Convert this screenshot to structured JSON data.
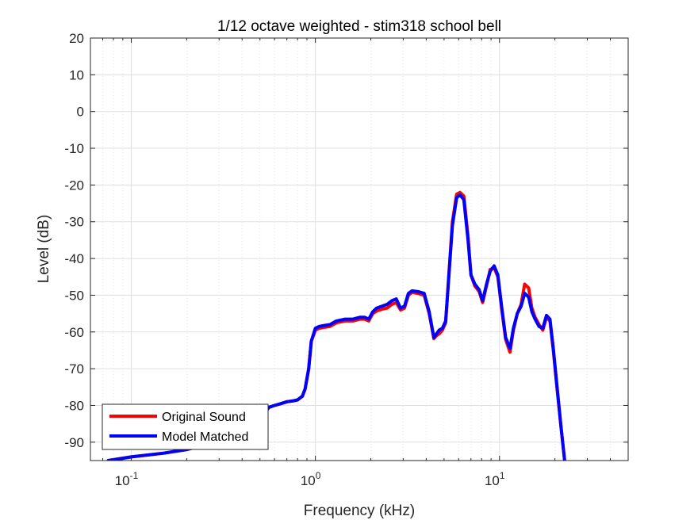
{
  "chart_data": {
    "type": "line",
    "title": "1/12 octave weighted - stim318 school bell",
    "xlabel": "Frequency (kHz)",
    "ylabel": "Level (dB)",
    "xscale": "log",
    "xlim": [
      0.06,
      50
    ],
    "ylim": [
      -95,
      20
    ],
    "grid": true,
    "legend_position": "bottom-left",
    "yticks": [
      20,
      10,
      0,
      -10,
      -20,
      -30,
      -40,
      -50,
      -60,
      -70,
      -80,
      -90
    ],
    "xticks": [
      {
        "value": 0.1,
        "base": "10",
        "exp": "-1"
      },
      {
        "value": 1,
        "base": "10",
        "exp": "0"
      },
      {
        "value": 10,
        "base": "10",
        "exp": "1"
      }
    ],
    "series": [
      {
        "name": "Original Sound",
        "color": "#ff0000",
        "x": [
          0.075,
          0.1,
          0.15,
          0.2,
          0.3,
          0.4,
          0.47,
          0.5,
          0.53,
          0.56,
          0.6,
          0.65,
          0.7,
          0.75,
          0.8,
          0.85,
          0.88,
          0.92,
          0.95,
          1.0,
          1.05,
          1.1,
          1.2,
          1.3,
          1.45,
          1.6,
          1.75,
          1.85,
          1.95,
          2.05,
          2.15,
          2.3,
          2.45,
          2.6,
          2.75,
          2.9,
          3.05,
          3.2,
          3.35,
          3.6,
          3.9,
          4.15,
          4.4,
          4.55,
          4.7,
          4.9,
          5.1,
          5.3,
          5.55,
          5.85,
          6.1,
          6.4,
          6.75,
          7.0,
          7.35,
          7.75,
          8.1,
          8.5,
          8.9,
          9.35,
          9.8,
          10.3,
          10.8,
          11.4,
          11.9,
          12.5,
          13.1,
          13.7,
          14.4,
          15.0,
          15.6,
          16.4,
          17.2,
          18.0,
          18.8,
          19.6,
          20.6,
          21.6,
          22.6,
          23.2
        ],
        "y": [
          -95,
          -94,
          -93,
          -92,
          -90,
          -88.5,
          -87,
          -84,
          -82,
          -80.5,
          -80,
          -79.5,
          -79,
          -78.8,
          -78.5,
          -77.5,
          -75.5,
          -70,
          -62.5,
          -59.5,
          -59,
          -58.8,
          -58.5,
          -57.5,
          -57,
          -57,
          -56.5,
          -56.5,
          -57,
          -55,
          -54.3,
          -53.8,
          -53.5,
          -52.5,
          -52,
          -54,
          -53.5,
          -50,
          -49.2,
          -49.5,
          -50,
          -55,
          -61.8,
          -61,
          -60.5,
          -59.5,
          -57.5,
          -45,
          -30,
          -22.5,
          -22,
          -23,
          -34,
          -44.5,
          -47.5,
          -49,
          -52,
          -47.5,
          -43,
          -42.5,
          -45,
          -54,
          -62,
          -65.5,
          -59.5,
          -55,
          -52.5,
          -47,
          -48,
          -53.5,
          -56,
          -58,
          -59.5,
          -56,
          -57,
          -65,
          -76,
          -86,
          -95,
          -100
        ]
      },
      {
        "name": "Model Matched",
        "color": "#0000ff",
        "x": [
          0.075,
          0.1,
          0.15,
          0.2,
          0.3,
          0.4,
          0.47,
          0.5,
          0.53,
          0.56,
          0.6,
          0.65,
          0.7,
          0.75,
          0.8,
          0.85,
          0.88,
          0.92,
          0.95,
          1.0,
          1.05,
          1.1,
          1.2,
          1.3,
          1.45,
          1.6,
          1.75,
          1.85,
          1.95,
          2.05,
          2.15,
          2.3,
          2.45,
          2.6,
          2.75,
          2.9,
          3.05,
          3.2,
          3.35,
          3.6,
          3.9,
          4.15,
          4.4,
          4.55,
          4.7,
          4.9,
          5.1,
          5.3,
          5.55,
          5.85,
          6.1,
          6.4,
          6.75,
          7.0,
          7.35,
          7.75,
          8.1,
          8.5,
          8.9,
          9.35,
          9.8,
          10.3,
          10.8,
          11.4,
          11.9,
          12.5,
          13.1,
          13.7,
          14.4,
          15.0,
          15.6,
          16.4,
          17.2,
          18.0,
          18.8,
          19.6,
          20.6,
          21.6,
          22.6,
          23.2
        ],
        "y": [
          -95,
          -94,
          -93,
          -92,
          -90,
          -88.5,
          -87,
          -84,
          -82,
          -80.5,
          -80,
          -79.5,
          -79,
          -78.8,
          -78.5,
          -77.5,
          -75.5,
          -70,
          -62.5,
          -59,
          -58.5,
          -58.3,
          -58,
          -57,
          -56.5,
          -56.5,
          -56,
          -56,
          -56.5,
          -54.5,
          -53.5,
          -53,
          -52.5,
          -51.5,
          -51,
          -53.5,
          -53,
          -49.5,
          -48.8,
          -49,
          -49.5,
          -54.5,
          -61.5,
          -60.5,
          -59.5,
          -59,
          -57,
          -45.5,
          -31,
          -23.5,
          -22.7,
          -24,
          -35,
          -44.5,
          -47,
          -48.5,
          -51.5,
          -47,
          -43.5,
          -42,
          -44.5,
          -53.5,
          -61.5,
          -64.5,
          -59,
          -55,
          -53,
          -49.5,
          -50.5,
          -54.5,
          -56.5,
          -58.5,
          -59,
          -55.5,
          -56.5,
          -64.5,
          -75.5,
          -86,
          -95,
          -100
        ]
      }
    ]
  }
}
